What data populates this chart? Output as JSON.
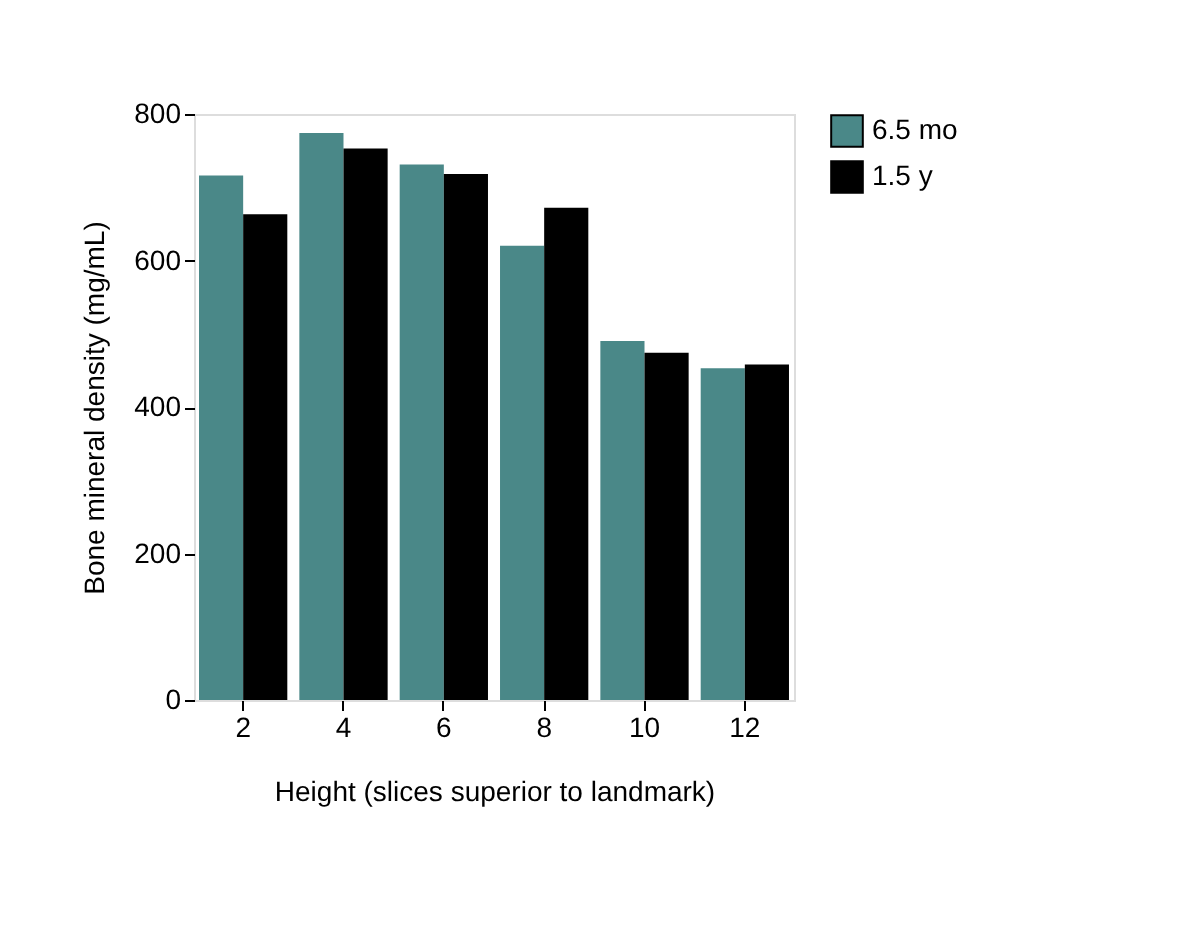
{
  "chart_data": {
    "type": "bar",
    "xlabel": "Height (slices superior to landmark)",
    "ylabel": "Bone mineral density (mg/mL)",
    "categories": [
      "2",
      "4",
      "6",
      "8",
      "10",
      "12"
    ],
    "series": [
      {
        "name": "6.5 mo",
        "color": "#4a8888",
        "values": [
          716,
          774,
          731,
          620,
          490,
          453
        ]
      },
      {
        "name": "1.5 y",
        "color": "#000000",
        "values": [
          663,
          753,
          718,
          672,
          474,
          458
        ]
      }
    ],
    "ylim": [
      0,
      800
    ],
    "yticks": [
      0,
      200,
      400,
      600,
      800
    ],
    "grid": false,
    "legend": "right"
  }
}
